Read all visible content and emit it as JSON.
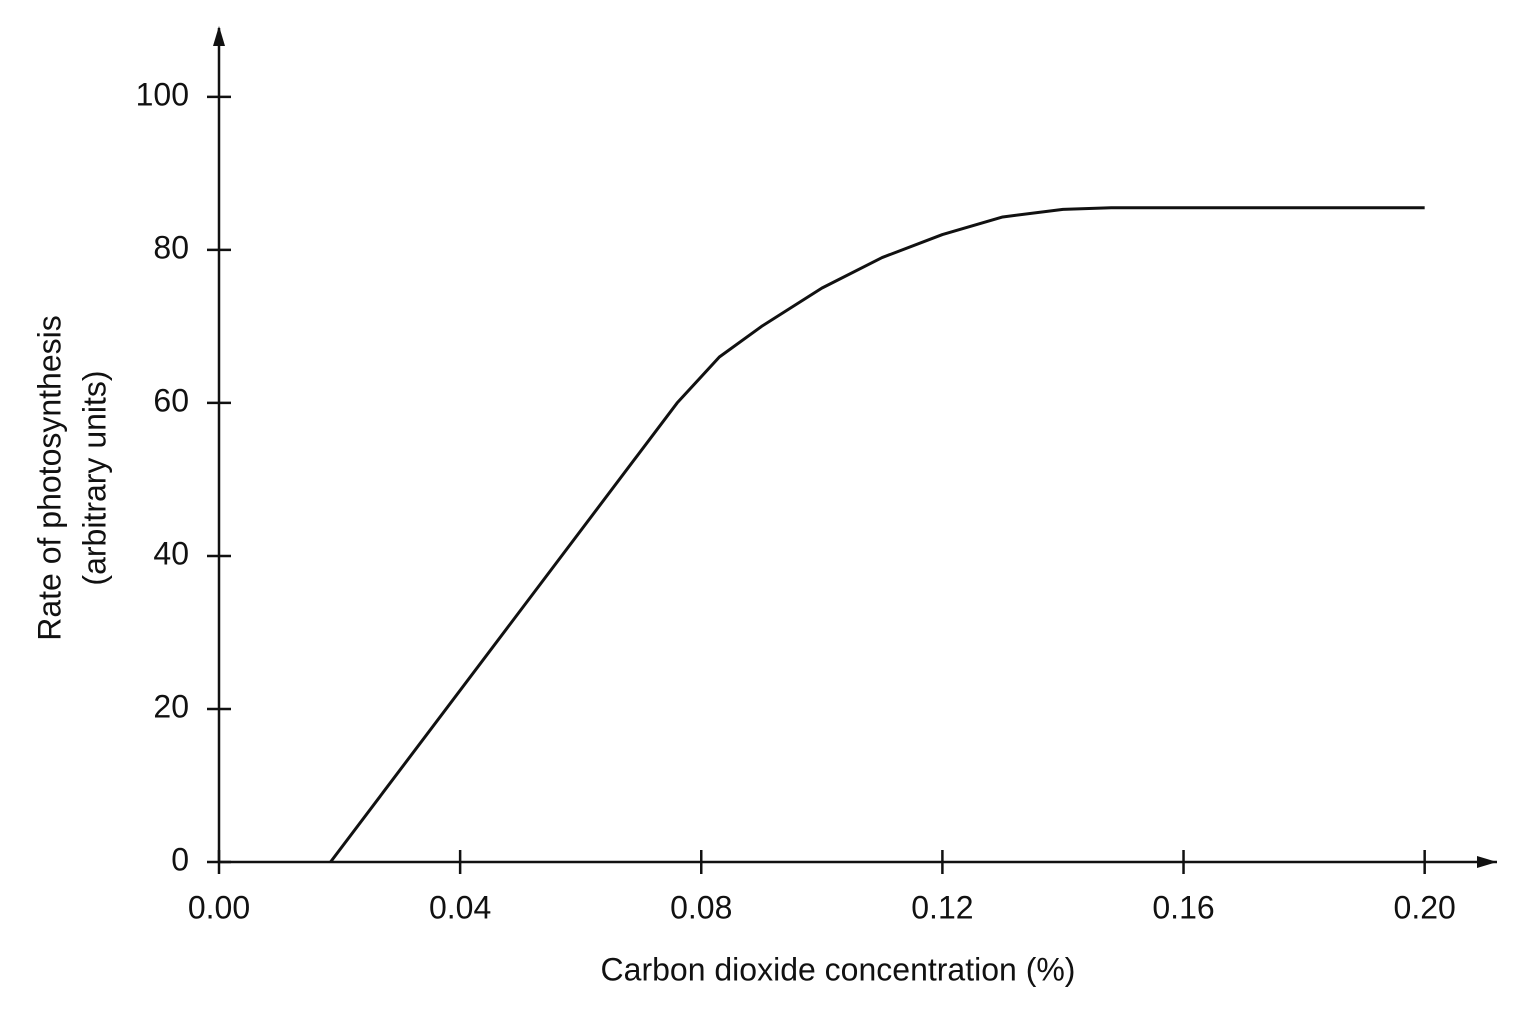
{
  "chart_data": {
    "type": "line",
    "xlabel": "Carbon dioxide concentration (%)",
    "ylabel": [
      "Rate of photosynthesis",
      "(arbitrary units)"
    ],
    "x": [
      0.0185,
      0.076,
      0.083,
      0.09,
      0.1,
      0.11,
      0.12,
      0.13,
      0.14,
      0.148,
      0.2
    ],
    "series": [
      {
        "color": "#111111",
        "values": [
          0,
          60,
          66,
          70,
          75,
          79,
          82,
          84.3,
          85.3,
          85.5,
          85.5
        ]
      }
    ],
    "xlim": [
      0,
      0.212
    ],
    "ylim": [
      0,
      109
    ],
    "xticks": [
      {
        "value": 0,
        "label": "0.00"
      },
      {
        "value": 0.04,
        "label": "0.04"
      },
      {
        "value": 0.08,
        "label": "0.08"
      },
      {
        "value": 0.12,
        "label": "0.12"
      },
      {
        "value": 0.16,
        "label": "0.16"
      },
      {
        "value": 0.2,
        "label": "0.20"
      }
    ],
    "yticks": [
      0,
      20,
      40,
      60,
      80,
      100
    ],
    "grid": false
  }
}
